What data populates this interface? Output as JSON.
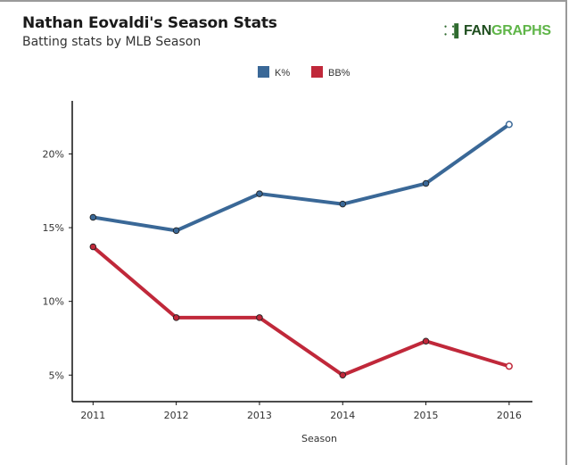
{
  "header": {
    "title": "Nathan Eovaldi's Season Stats",
    "subtitle": "Batting stats by MLB Season",
    "logo": {
      "icon": "batter-silhouette-icon",
      "part1": "FAN",
      "part2": "GRAPHS"
    }
  },
  "colors": {
    "k_pct": "#3a6897",
    "bb_pct": "#c0283a",
    "logo_dark": "#1f4e1f",
    "logo_green": "#5fb548"
  },
  "chart_data": {
    "type": "line",
    "title": "Nathan Eovaldi's Season Stats",
    "subtitle": "Batting stats by MLB Season",
    "xlabel": "Season",
    "ylabel": "",
    "x": [
      2011,
      2012,
      2013,
      2014,
      2015,
      2016
    ],
    "x_tick_labels": [
      "2011",
      "2012",
      "2013",
      "2014",
      "2015",
      "2016"
    ],
    "y_ticks": [
      5,
      10,
      15,
      20
    ],
    "y_tick_labels": [
      "5%",
      "10%",
      "15%",
      "20%"
    ],
    "ylim": [
      3.2,
      23.6
    ],
    "xlim": [
      2010.75,
      2016.28
    ],
    "grid": false,
    "legend": {
      "placement": "top-center",
      "entries": [
        "K%",
        "BB%"
      ]
    },
    "series": [
      {
        "name": "K%",
        "color": "#3a6897",
        "values": [
          15.7,
          14.8,
          17.3,
          16.6,
          18.0,
          22.0
        ],
        "last_point_hollow": true
      },
      {
        "name": "BB%",
        "color": "#c0283a",
        "values": [
          13.7,
          8.9,
          8.9,
          5.0,
          7.3,
          5.6
        ],
        "last_point_hollow": true
      }
    ]
  }
}
